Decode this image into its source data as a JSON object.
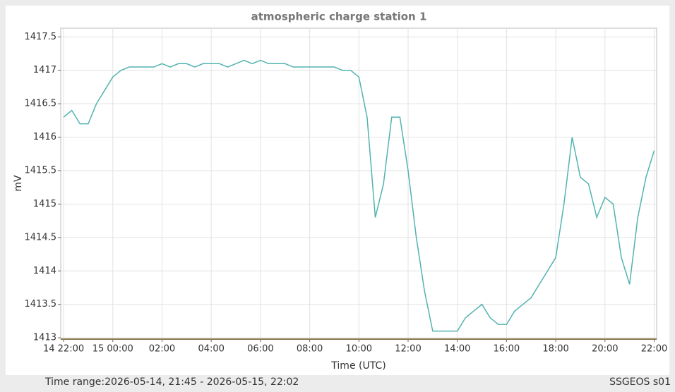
{
  "chart_data": {
    "type": "line",
    "title": "atmospheric charge station 1",
    "x_label": "Time (UTC)",
    "y_label": "mV",
    "footer_left": "Time range:2026-05-14, 21:45 - 2026-05-15, 22:02",
    "footer_right": "SSGEOS s01",
    "grid": true,
    "xlim": [
      "2026-05-14T21:53",
      "2026-05-15T22:06"
    ],
    "xticks": [
      {
        "value": "2026-05-14T22:00",
        "label": "14 22:00"
      },
      {
        "value": "2026-05-15T00:00",
        "label": "15 00:00"
      },
      {
        "value": "2026-05-15T02:00",
        "label": "02:00"
      },
      {
        "value": "2026-05-15T04:00",
        "label": "04:00"
      },
      {
        "value": "2026-05-15T06:00",
        "label": "06:00"
      },
      {
        "value": "2026-05-15T08:00",
        "label": "08:00"
      },
      {
        "value": "2026-05-15T10:00",
        "label": "10:00"
      },
      {
        "value": "2026-05-15T12:00",
        "label": "12:00"
      },
      {
        "value": "2026-05-15T14:00",
        "label": "14:00"
      },
      {
        "value": "2026-05-15T16:00",
        "label": "16:00"
      },
      {
        "value": "2026-05-15T18:00",
        "label": "18:00"
      },
      {
        "value": "2026-05-15T20:00",
        "label": "20:00"
      },
      {
        "value": "2026-05-15T22:00",
        "label": "22:00"
      }
    ],
    "ylim": [
      1412.98,
      1417.63
    ],
    "yticks": [
      1413,
      1413.5,
      1414,
      1414.5,
      1415,
      1415.5,
      1416,
      1416.5,
      1417,
      1417.5
    ],
    "x": [
      "2026-05-14T22:00",
      "2026-05-14T22:20",
      "2026-05-14T22:40",
      "2026-05-14T23:00",
      "2026-05-14T23:20",
      "2026-05-14T23:40",
      "2026-05-15T00:00",
      "2026-05-15T00:20",
      "2026-05-15T00:40",
      "2026-05-15T01:00",
      "2026-05-15T01:20",
      "2026-05-15T01:40",
      "2026-05-15T02:00",
      "2026-05-15T02:20",
      "2026-05-15T02:40",
      "2026-05-15T03:00",
      "2026-05-15T03:20",
      "2026-05-15T03:40",
      "2026-05-15T04:00",
      "2026-05-15T04:20",
      "2026-05-15T04:40",
      "2026-05-15T05:00",
      "2026-05-15T05:20",
      "2026-05-15T05:40",
      "2026-05-15T06:00",
      "2026-05-15T06:20",
      "2026-05-15T06:40",
      "2026-05-15T07:00",
      "2026-05-15T07:20",
      "2026-05-15T07:40",
      "2026-05-15T08:00",
      "2026-05-15T08:20",
      "2026-05-15T08:40",
      "2026-05-15T09:00",
      "2026-05-15T09:20",
      "2026-05-15T09:40",
      "2026-05-15T10:00",
      "2026-05-15T10:20",
      "2026-05-15T10:40",
      "2026-05-15T11:00",
      "2026-05-15T11:20",
      "2026-05-15T11:40",
      "2026-05-15T12:00",
      "2026-05-15T12:20",
      "2026-05-15T12:40",
      "2026-05-15T13:00",
      "2026-05-15T13:20",
      "2026-05-15T13:40",
      "2026-05-15T14:00",
      "2026-05-15T14:20",
      "2026-05-15T14:40",
      "2026-05-15T15:00",
      "2026-05-15T15:20",
      "2026-05-15T15:40",
      "2026-05-15T16:00",
      "2026-05-15T16:20",
      "2026-05-15T16:40",
      "2026-05-15T17:00",
      "2026-05-15T17:20",
      "2026-05-15T17:40",
      "2026-05-15T18:00",
      "2026-05-15T18:20",
      "2026-05-15T18:40",
      "2026-05-15T19:00",
      "2026-05-15T19:20",
      "2026-05-15T19:40",
      "2026-05-15T20:00",
      "2026-05-15T20:20",
      "2026-05-15T20:40",
      "2026-05-15T21:00",
      "2026-05-15T21:20",
      "2026-05-15T21:40",
      "2026-05-15T22:00"
    ],
    "series": [
      {
        "name": "station 1",
        "color": "#52b3b0",
        "values": [
          1416.3,
          1416.4,
          1416.2,
          1416.2,
          1416.5,
          1416.7,
          1416.9,
          1417.0,
          1417.05,
          1417.05,
          1417.05,
          1417.05,
          1417.1,
          1417.05,
          1417.1,
          1417.1,
          1417.05,
          1417.1,
          1417.1,
          1417.1,
          1417.05,
          1417.1,
          1417.15,
          1417.1,
          1417.15,
          1417.1,
          1417.1,
          1417.1,
          1417.05,
          1417.05,
          1417.05,
          1417.05,
          1417.05,
          1417.05,
          1417.0,
          1417.0,
          1416.9,
          1416.3,
          1414.8,
          1415.3,
          1416.3,
          1416.3,
          1415.5,
          1414.5,
          1413.7,
          1413.1,
          1413.1,
          1413.1,
          1413.1,
          1413.3,
          1413.4,
          1413.5,
          1413.3,
          1413.2,
          1413.2,
          1413.4,
          1413.5,
          1413.6,
          1413.8,
          1414.0,
          1414.2,
          1415.0,
          1416.0,
          1415.4,
          1415.3,
          1414.8,
          1415.1,
          1415.0,
          1414.2,
          1413.8,
          1414.8,
          1415.4,
          1415.8
        ]
      }
    ]
  }
}
